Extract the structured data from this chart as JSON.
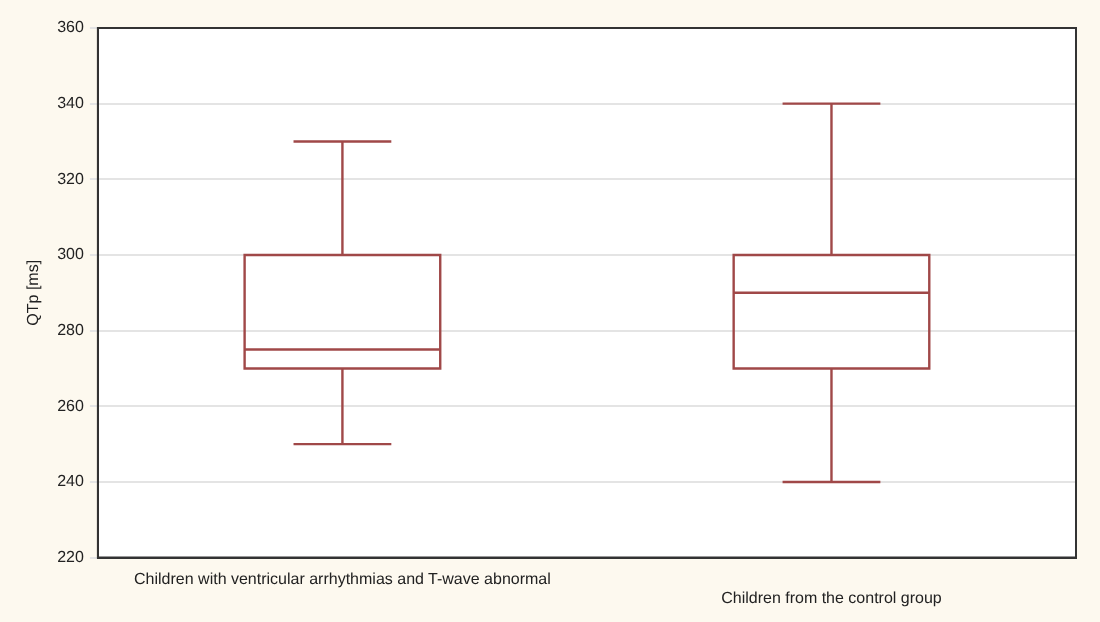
{
  "chart_data": {
    "type": "box",
    "ylabel": "QTp [ms]",
    "categories": [
      "Children with ventricular arrhythmias and T-wave abnormal",
      "Children from the control group"
    ],
    "boxes": [
      {
        "low": 250,
        "q1": 270,
        "median": 275,
        "q3": 300,
        "high": 330
      },
      {
        "low": 240,
        "q1": 270,
        "median": 290,
        "q3": 300,
        "high": 340
      }
    ],
    "color": "#a04848",
    "ylim": [
      220,
      360
    ],
    "yticks": [
      220,
      240,
      260,
      280,
      300,
      320,
      340,
      360
    ],
    "grid": "y",
    "legend": false
  }
}
